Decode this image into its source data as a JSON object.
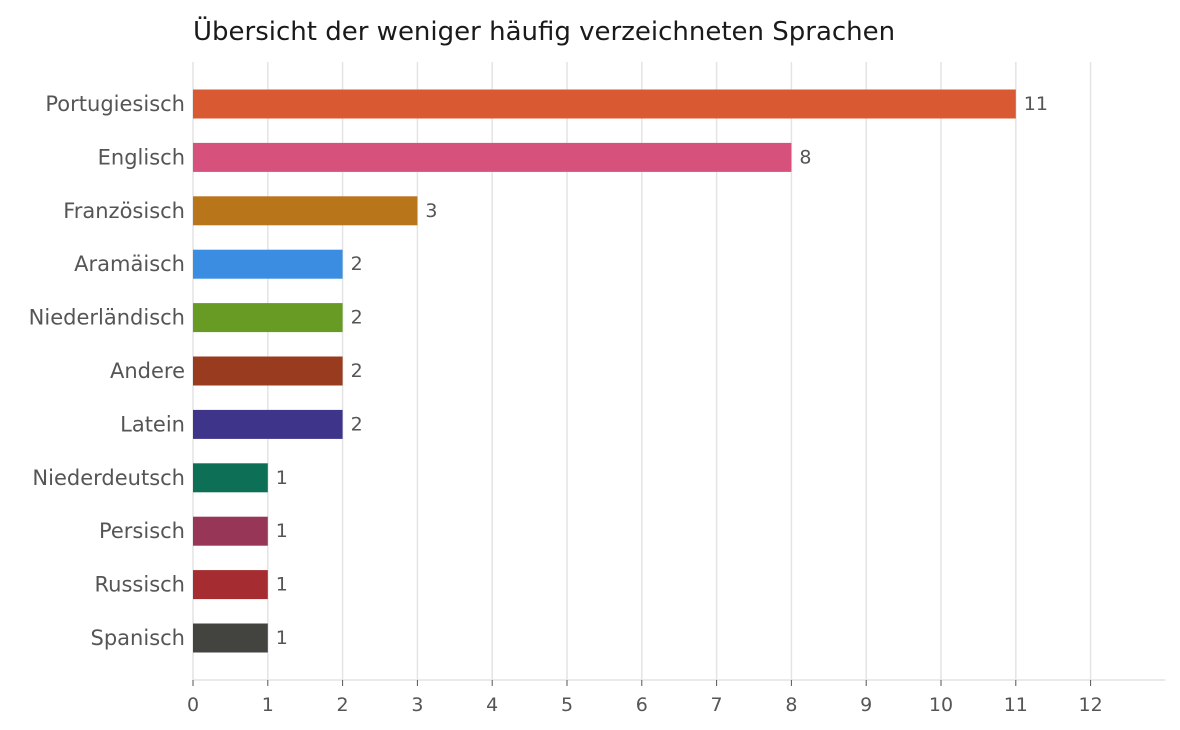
{
  "chart_data": {
    "type": "bar",
    "orientation": "horizontal",
    "title": "Übersicht der weniger häufig verzeichneten Sprachen",
    "xlabel": "",
    "ylabel": "",
    "categories": [
      "Portugiesisch",
      "Englisch",
      "Französisch",
      "Aramäisch",
      "Niederländisch",
      "Andere",
      "Latein",
      "Niederdeutsch",
      "Persisch",
      "Russisch",
      "Spanisch"
    ],
    "values": [
      11,
      8,
      3,
      2,
      2,
      2,
      2,
      1,
      1,
      1,
      1
    ],
    "colors": [
      "#d95a32",
      "#d6517c",
      "#b87519",
      "#3a8de0",
      "#679b24",
      "#983b1e",
      "#3e358a",
      "#0e6f57",
      "#983658",
      "#a52c30",
      "#434340"
    ],
    "xlim": [
      0,
      13
    ],
    "xticks": [
      0,
      1,
      2,
      3,
      4,
      5,
      6,
      7,
      8,
      9,
      10,
      11,
      12
    ],
    "grid": "vertical",
    "legend": "none",
    "data_labels": true
  }
}
